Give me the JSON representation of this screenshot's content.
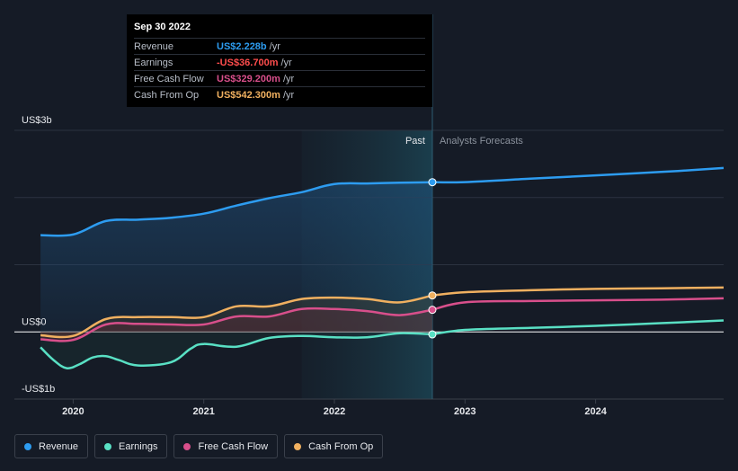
{
  "tooltip": {
    "date": "Sep 30 2022",
    "rows": [
      {
        "name": "Revenue",
        "value": "US$2.228b",
        "unit": "/yr",
        "color": "#2d9cf0"
      },
      {
        "name": "Earnings",
        "value": "-US$36.700m",
        "unit": "/yr",
        "color": "#ff4d4d"
      },
      {
        "name": "Free Cash Flow",
        "value": "US$329.200m",
        "unit": "/yr",
        "color": "#d84f8b"
      },
      {
        "name": "Cash From Op",
        "value": "US$542.300m",
        "unit": "/yr",
        "color": "#f0b060"
      }
    ]
  },
  "chart_data": {
    "type": "line",
    "ylim": [
      -1000,
      3000
    ],
    "y_tick_labels": [
      "US$3b",
      "US$0",
      "-US$1b"
    ],
    "x_tick_labels": [
      "2020",
      "2021",
      "2022",
      "2023",
      "2024"
    ],
    "divider_labels": {
      "past": "Past",
      "forecast": "Analysts Forecasts"
    },
    "divider_x": 2022.75,
    "highlight_range": [
      2021.75,
      2022.75
    ],
    "xlim": [
      2019.55,
      2024.98
    ],
    "series": [
      {
        "name": "Revenue",
        "color": "#2d9cf0",
        "points": [
          [
            2019.75,
            1440
          ],
          [
            2020.0,
            1450
          ],
          [
            2020.25,
            1650
          ],
          [
            2020.5,
            1670
          ],
          [
            2020.75,
            1700
          ],
          [
            2021.0,
            1760
          ],
          [
            2021.25,
            1880
          ],
          [
            2021.5,
            1990
          ],
          [
            2021.75,
            2080
          ],
          [
            2022.0,
            2200
          ],
          [
            2022.25,
            2210
          ],
          [
            2022.5,
            2220
          ],
          [
            2022.75,
            2228
          ]
        ],
        "forecast": [
          [
            2023.0,
            2230
          ],
          [
            2023.5,
            2280
          ],
          [
            2024.0,
            2330
          ],
          [
            2024.5,
            2380
          ],
          [
            2024.98,
            2440
          ]
        ]
      },
      {
        "name": "Earnings",
        "color": "#59e0c4",
        "points": [
          [
            2019.75,
            -230
          ],
          [
            2019.85,
            -420
          ],
          [
            2019.95,
            -540
          ],
          [
            2020.05,
            -480
          ],
          [
            2020.15,
            -380
          ],
          [
            2020.25,
            -360
          ],
          [
            2020.35,
            -420
          ],
          [
            2020.5,
            -500
          ],
          [
            2020.75,
            -450
          ],
          [
            2020.9,
            -250
          ],
          [
            2021.0,
            -180
          ],
          [
            2021.25,
            -220
          ],
          [
            2021.5,
            -90
          ],
          [
            2021.75,
            -60
          ],
          [
            2022.0,
            -80
          ],
          [
            2022.25,
            -80
          ],
          [
            2022.5,
            -20
          ],
          [
            2022.75,
            -37
          ]
        ],
        "forecast": [
          [
            2023.0,
            30
          ],
          [
            2023.5,
            60
          ],
          [
            2024.0,
            90
          ],
          [
            2024.5,
            130
          ],
          [
            2024.98,
            170
          ]
        ]
      },
      {
        "name": "Free Cash Flow",
        "color": "#d84f8b",
        "points": [
          [
            2019.75,
            -110
          ],
          [
            2020.0,
            -120
          ],
          [
            2020.25,
            110
          ],
          [
            2020.5,
            120
          ],
          [
            2020.75,
            110
          ],
          [
            2021.0,
            110
          ],
          [
            2021.25,
            230
          ],
          [
            2021.5,
            230
          ],
          [
            2021.75,
            340
          ],
          [
            2022.0,
            340
          ],
          [
            2022.25,
            310
          ],
          [
            2022.5,
            250
          ],
          [
            2022.75,
            329
          ]
        ],
        "forecast": [
          [
            2023.0,
            440
          ],
          [
            2023.5,
            460
          ],
          [
            2024.0,
            470
          ],
          [
            2024.5,
            480
          ],
          [
            2024.98,
            500
          ]
        ]
      },
      {
        "name": "Cash From Op",
        "color": "#f0b060",
        "points": [
          [
            2019.75,
            -50
          ],
          [
            2020.0,
            -60
          ],
          [
            2020.25,
            190
          ],
          [
            2020.5,
            220
          ],
          [
            2020.75,
            220
          ],
          [
            2021.0,
            220
          ],
          [
            2021.25,
            380
          ],
          [
            2021.5,
            380
          ],
          [
            2021.75,
            490
          ],
          [
            2022.0,
            510
          ],
          [
            2022.25,
            490
          ],
          [
            2022.5,
            440
          ],
          [
            2022.75,
            542
          ]
        ],
        "forecast": [
          [
            2023.0,
            590
          ],
          [
            2023.5,
            620
          ],
          [
            2024.0,
            640
          ],
          [
            2024.5,
            650
          ],
          [
            2024.98,
            660
          ]
        ]
      }
    ]
  },
  "legend": [
    {
      "label": "Revenue",
      "color": "#2d9cf0"
    },
    {
      "label": "Earnings",
      "color": "#59e0c4"
    },
    {
      "label": "Free Cash Flow",
      "color": "#d84f8b"
    },
    {
      "label": "Cash From Op",
      "color": "#f0b060"
    }
  ]
}
